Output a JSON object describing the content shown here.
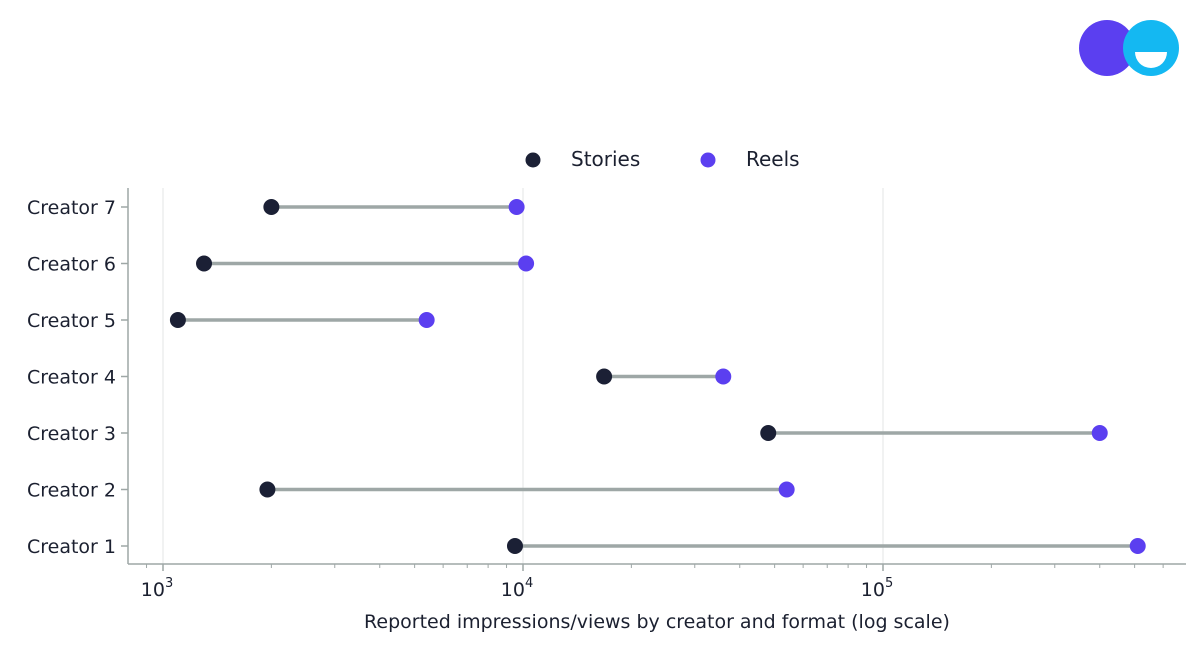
{
  "chart_data": {
    "type": "dumbbell",
    "x_scale": "log",
    "xlim": [
      820,
      700000
    ],
    "xlabel": "Reported impressions/views by creator and format (log scale)",
    "x_ticks": [
      {
        "value": 1000,
        "base": "10",
        "exp": "3"
      },
      {
        "value": 10000,
        "base": "10",
        "exp": "4"
      },
      {
        "value": 100000,
        "base": "10",
        "exp": "5"
      }
    ],
    "grid": "vertical at major ticks",
    "legend_position": "top-center",
    "categories": [
      "Creator 1",
      "Creator 2",
      "Creator 3",
      "Creator 4",
      "Creator 5",
      "Creator 6",
      "Creator 7"
    ],
    "series": [
      {
        "name": "Stories",
        "color": "#1b2035",
        "values": [
          9500,
          1950,
          48000,
          16800,
          1100,
          1300,
          2000
        ]
      },
      {
        "name": "Reels",
        "color": "#5b3ff0",
        "values": [
          510000,
          54000,
          400000,
          36000,
          5400,
          10200,
          9600
        ]
      }
    ],
    "connector_color": "#9ea7a6"
  },
  "logo": {
    "name": "brand-logo",
    "colors": [
      "#5b3ff0",
      "#14b8f2"
    ]
  }
}
